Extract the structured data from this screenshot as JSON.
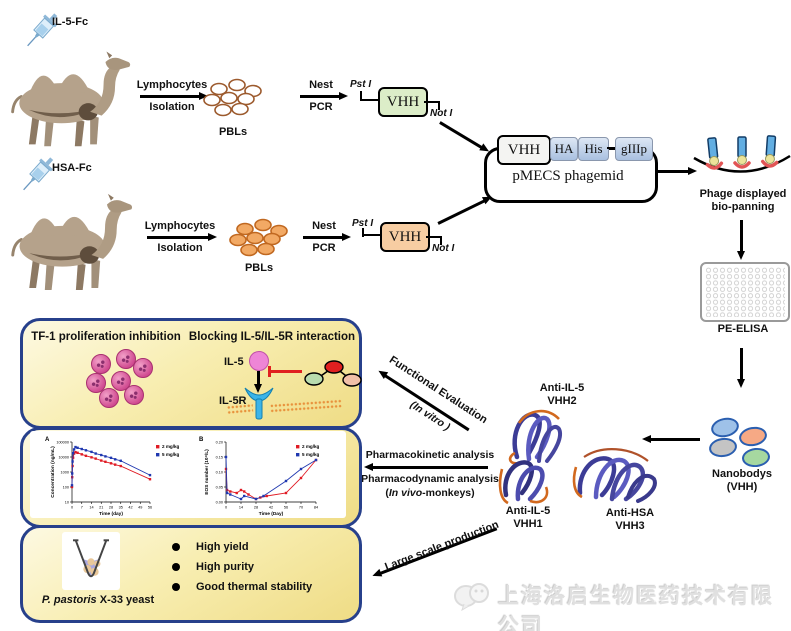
{
  "colors": {
    "panel_border": "#27408b",
    "panel_background": "#f6e9a8",
    "vhh_box_row1": "#dcedc8",
    "vhh_box_row2": "#f7cda2",
    "series_red": "#e01b24",
    "series_blue": "#2038b0",
    "phage_blue": "#62aee2",
    "receptor_blue": "#3cb4e8",
    "il5_pink": "#ee85d6"
  },
  "row1": {
    "antigen": "IL-5-Fc",
    "arrow1_top": "Lymphocytes",
    "arrow1_bottom": "Isolation",
    "cells_label": "PBLs",
    "arrow2_top": "Nest",
    "arrow2_bottom": "PCR",
    "site_left": "Pst I",
    "gene": "VHH",
    "site_right": "Not I"
  },
  "row2": {
    "antigen": "HSA-Fc",
    "arrow1_top": "Lymphocytes",
    "arrow1_bottom": "Isolation",
    "cells_label": "PBLs",
    "arrow2_top": "Nest",
    "arrow2_bottom": "PCR",
    "site_left": "Pst I",
    "gene": "VHH",
    "site_right": "Not I"
  },
  "phagemid": {
    "insert": "VHH",
    "tag_ha": "HA",
    "tag_his": "His",
    "gene3": "gIIIp",
    "name": "pMECS phagemid"
  },
  "biopanning": {
    "line1": "Phage displayed",
    "line2": "bio-panning"
  },
  "elisa": {
    "label": "PE-ELISA"
  },
  "nanobodies": {
    "line1": "Nanobodys",
    "line2": "(VHH)"
  },
  "proteins": {
    "vhh2_l1": "Anti-IL-5",
    "vhh2_l2": "VHH2",
    "vhh1_l1": "Anti-IL-5",
    "vhh1_l2": "VHH1",
    "vhh3_l1": "Anti-HSA",
    "vhh3_l2": "VHH3"
  },
  "steps": {
    "functional": "Functional Evaluation",
    "functional_sub": "(In vitro )",
    "pk": "Pharmacokinetic analysis",
    "pd": "Pharmacodynamic analysis",
    "pd_sub_prefix": "(",
    "pd_sub_italic": "In vivo",
    "pd_sub_suffix": "-monkeys)",
    "production": "Large scale production"
  },
  "panel_function": {
    "title_left": "TF-1 proliferation inhibition",
    "title_right": "Blocking IL-5/IL-5R interaction",
    "il5": "IL-5",
    "il5r": "IL-5R"
  },
  "panel_production": {
    "flask_italic": "P. pastoris",
    "flask_rest": " X-33 yeast",
    "bullets": [
      "High yield",
      "High purity",
      "Good thermal stability"
    ]
  },
  "watermark": {
    "company": "上海洛启生物医药技术有限公司"
  },
  "chart_data": [
    {
      "type": "line",
      "title": "A",
      "xlabel": "Time (day)",
      "ylabel": "Concentration (ng/mL)",
      "xlim": [
        0,
        56
      ],
      "ylim": [
        10,
        100000
      ],
      "ylog": true,
      "xticks": [
        0,
        7,
        14,
        21,
        28,
        35,
        42,
        49,
        56
      ],
      "yticks": [
        10,
        100,
        1000,
        10000,
        100000
      ],
      "legend_position": "right",
      "grid": false,
      "series": [
        {
          "name": "2 mg/kg",
          "color": "#e01b24",
          "x": [
            0,
            0.15,
            0.4,
            0.8,
            1.5,
            2.5,
            4,
            7,
            10,
            14,
            17,
            21,
            24,
            28,
            31,
            35,
            56
          ],
          "y": [
            100,
            450,
            2500,
            9000,
            17000,
            21000,
            19000,
            15000,
            12000,
            9500,
            7800,
            5800,
            4800,
            3800,
            3100,
            2500,
            330
          ]
        },
        {
          "name": "5 mg/kg",
          "color": "#2038b0",
          "x": [
            0,
            0.15,
            0.4,
            0.8,
            1.5,
            2.5,
            4,
            7,
            10,
            14,
            17,
            21,
            24,
            28,
            31,
            35,
            56
          ],
          "y": [
            130,
            800,
            5000,
            18000,
            32000,
            46000,
            41000,
            34000,
            28000,
            22000,
            17000,
            13500,
            11000,
            8800,
            7000,
            5600,
            620
          ]
        }
      ]
    },
    {
      "type": "line",
      "title": "B",
      "xlabel": "Time (Day)",
      "ylabel": "EOS number (10⁹/L)",
      "xlim": [
        0,
        84
      ],
      "ylim": [
        0,
        0.2
      ],
      "ylog": false,
      "ydecimals": 2,
      "xticks": [
        0,
        14,
        28,
        42,
        56,
        70,
        84
      ],
      "yticks": [
        0,
        0.05,
        0.1,
        0.15,
        0.2
      ],
      "legend_position": "right",
      "grid": false,
      "series": [
        {
          "name": "2 mg/kg",
          "color": "#e01b24",
          "x": [
            0,
            1,
            4,
            10,
            14,
            17,
            21,
            28,
            32,
            38,
            56,
            70,
            84
          ],
          "y": [
            0.11,
            0.04,
            0.035,
            0.03,
            0.04,
            0.035,
            0.025,
            0.01,
            0.015,
            0.02,
            0.03,
            0.08,
            0.14
          ]
        },
        {
          "name": "5 mg/kg",
          "color": "#2038b0",
          "x": [
            0,
            1,
            4,
            14,
            17,
            28,
            35,
            56,
            70,
            84
          ],
          "y": [
            0.15,
            0.03,
            0.025,
            0.01,
            0.02,
            0.01,
            0.02,
            0.07,
            0.11,
            0.14
          ]
        }
      ]
    }
  ]
}
